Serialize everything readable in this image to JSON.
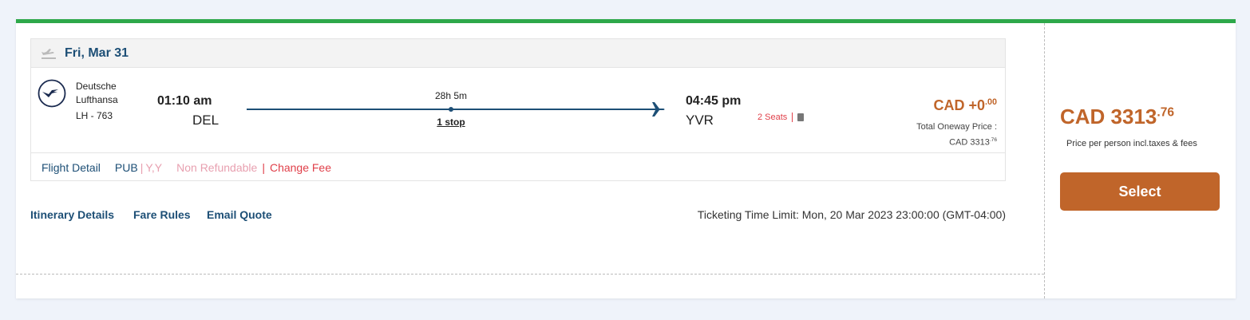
{
  "segment": {
    "date": "Fri, Mar 31",
    "airline_line1": "Deutsche",
    "airline_line2": "Lufthansa",
    "flight_number": "LH - 763",
    "depart_time": "01:10 am",
    "depart_airport": "DEL",
    "duration": "28h 5m",
    "stops": "1 stop",
    "arrive_time": "04:45 pm",
    "arrive_airport": "YVR",
    "seats": "2 Seats",
    "price_diff": "CAD +0",
    "price_diff_cents": ".00",
    "total_label": "Total Oneway Price :",
    "total": "CAD 3313",
    "total_cents": ".76"
  },
  "footer": {
    "flight_detail": "Flight Detail",
    "fare_class": "PUB",
    "cabin": "Y,Y",
    "refund": "Non Refundable",
    "change_fee": "Change Fee"
  },
  "links": {
    "itinerary": "Itinerary Details",
    "fare_rules": "Fare Rules",
    "email": "Email Quote"
  },
  "ticketing": "Ticketing Time Limit: Mon, 20 Mar 2023 23:00:00 (GMT-04:00)",
  "price_panel": {
    "price": "CAD 3313",
    "cents": ".76",
    "note": "Price per person incl.taxes & fees",
    "select": "Select"
  },
  "colors": {
    "accent": "#c0652a",
    "top_bar": "#2ea84a",
    "link": "#1d4f76"
  }
}
